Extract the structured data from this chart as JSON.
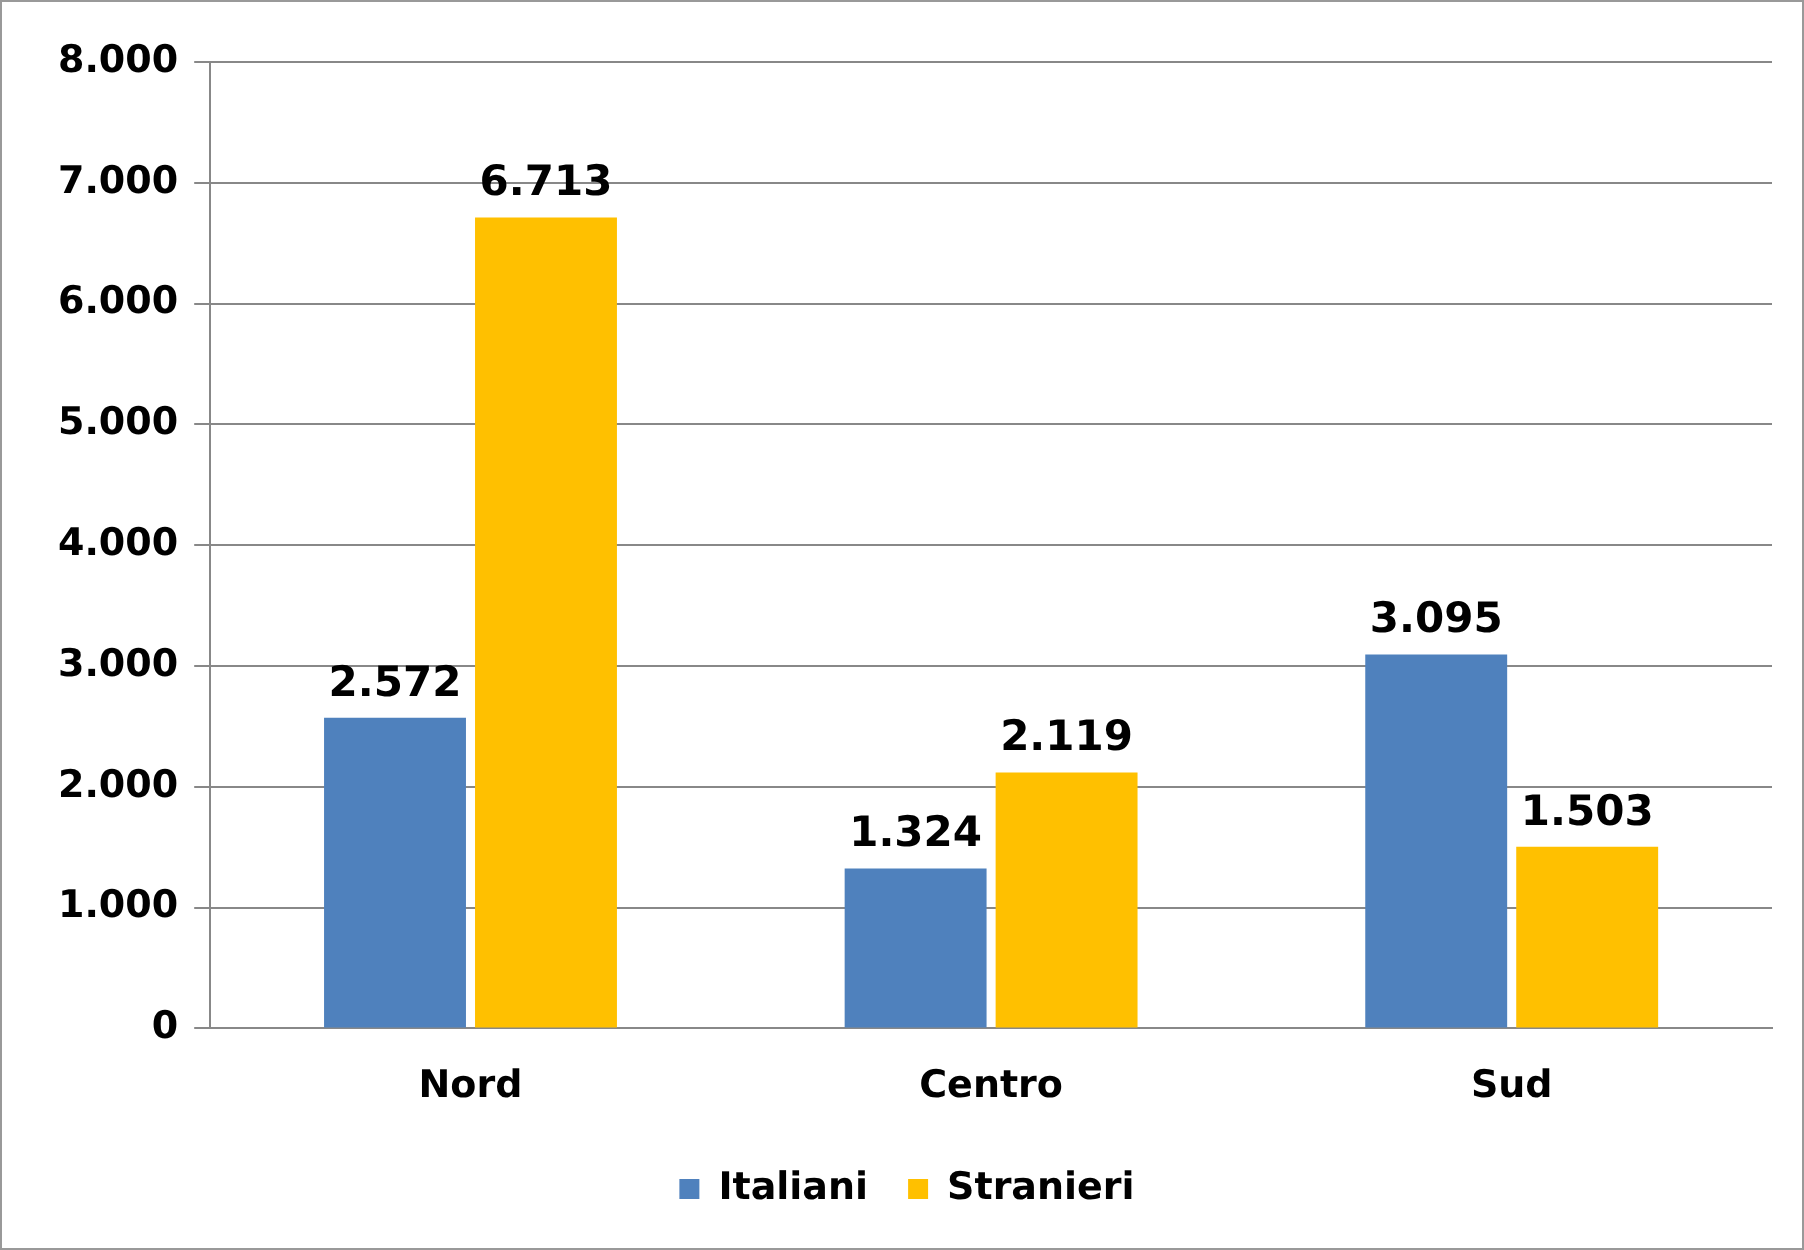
{
  "chart_data": {
    "type": "bar",
    "categories": [
      "Nord",
      "Centro",
      "Sud"
    ],
    "series": [
      {
        "name": "Italiani",
        "color": "#4f81bd",
        "values": [
          2572,
          1324,
          3095
        ],
        "value_labels": [
          "2.572",
          "1.324",
          "3.095"
        ]
      },
      {
        "name": "Stranieri",
        "color": "#ffc000",
        "values": [
          6713,
          2119,
          1503
        ],
        "value_labels": [
          "6.713",
          "2.119",
          "1.503"
        ]
      }
    ],
    "ylim": [
      0,
      8000
    ],
    "yticks": [
      {
        "value": 0,
        "label": "0"
      },
      {
        "value": 1000,
        "label": "1.000"
      },
      {
        "value": 2000,
        "label": "2.000"
      },
      {
        "value": 3000,
        "label": "3.000"
      },
      {
        "value": 4000,
        "label": "4.000"
      },
      {
        "value": 5000,
        "label": "5.000"
      },
      {
        "value": 6000,
        "label": "6.000"
      },
      {
        "value": 7000,
        "label": "7.000"
      },
      {
        "value": 8000,
        "label": "8.000"
      }
    ],
    "grid": "y",
    "legend": "bottom"
  }
}
